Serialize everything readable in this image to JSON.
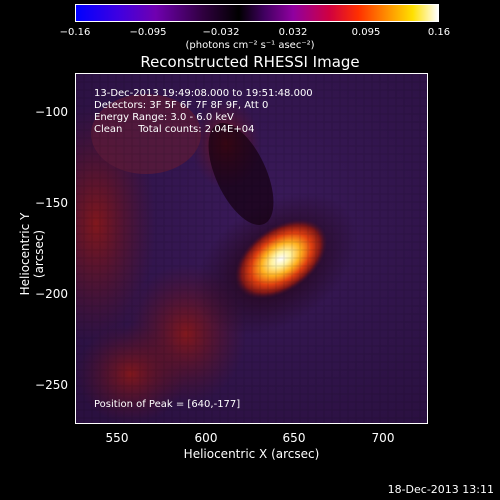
{
  "colorbar": {
    "ticks": [
      "−0.16",
      "−0.095",
      "−0.032",
      "0.032",
      "0.095",
      "0.16"
    ],
    "units": "(photons cm⁻² s⁻¹ asec⁻²)"
  },
  "title": "Reconstructed RHESSI Image",
  "info": {
    "time": "13-Dec-2013 19:49:08.000 to 19:51:48.000",
    "detectors": "Detectors: 3F 5F 6F 7F 8F 9F, Att 0",
    "energy": "Energy Range: 3.0 - 6.0 keV",
    "clean": "Clean     Total counts: 2.04E+04"
  },
  "peak": "Position of Peak = [640,-177]",
  "axes": {
    "ylabel": "Heliocentric Y (arcsec)",
    "xlabel": "Heliocentric X (arcsec)",
    "yticks": [
      "−100",
      "−150",
      "−200",
      "−250"
    ],
    "xticks": [
      "550",
      "600",
      "650",
      "700"
    ]
  },
  "timestamp": "18-Dec-2013 13:11",
  "colors": {
    "background": "#000000",
    "foreground": "#ffffff"
  }
}
